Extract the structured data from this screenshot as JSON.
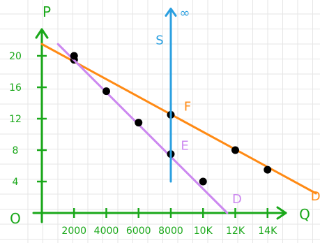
{
  "chart_data": {
    "type": "line",
    "xlabel": "Q",
    "ylabel": "P",
    "origin_label": "O",
    "x_ticks": [
      {
        "value": 2000,
        "label": "2000"
      },
      {
        "value": 4000,
        "label": "4000"
      },
      {
        "value": 6000,
        "label": "6000"
      },
      {
        "value": 8000,
        "label": "8000"
      },
      {
        "value": 10000,
        "label": "10K"
      },
      {
        "value": 12000,
        "label": "12K"
      },
      {
        "value": 14000,
        "label": "14K"
      }
    ],
    "y_ticks": [
      {
        "value": 4,
        "label": "4"
      },
      {
        "value": 8,
        "label": "8"
      },
      {
        "value": 12,
        "label": "12"
      },
      {
        "value": 16,
        "label": "16"
      },
      {
        "value": 20,
        "label": "20"
      }
    ],
    "xlim": [
      0,
      16000
    ],
    "ylim": [
      0,
      24
    ],
    "grid": true,
    "series": [
      {
        "name": "D'",
        "color": "#ff8a14",
        "line": [
          [
            0,
            21.5
          ],
          [
            17000,
            2.5
          ]
        ],
        "points": [
          [
            2000,
            19.5
          ],
          [
            8000,
            12.5
          ],
          [
            12000,
            8
          ],
          [
            14000,
            5.5
          ]
        ]
      },
      {
        "name": "D",
        "color": "#cc88f0",
        "line": [
          [
            1000,
            21.5
          ],
          [
            11500,
            0
          ]
        ],
        "points": [
          [
            2000,
            20
          ],
          [
            4000,
            15.5
          ],
          [
            6000,
            11.5
          ],
          [
            8000,
            7.5
          ],
          [
            10000,
            4
          ]
        ]
      },
      {
        "name": "S",
        "color": "#2a9fe0",
        "line": [
          [
            8000,
            4
          ],
          [
            8000,
            26
          ]
        ],
        "points": []
      }
    ],
    "annotations": [
      {
        "text": "F",
        "x": 8000,
        "y": 12.5,
        "color": "#ff8a14"
      },
      {
        "text": "E",
        "x": 8000,
        "y": 7.5,
        "color": "#cc88f0"
      },
      {
        "text": "S",
        "x": 8000,
        "y": 22,
        "color": "#2a9fe0"
      },
      {
        "text": "∞",
        "x": 8000,
        "y": 26,
        "color": "#2a9fe0"
      }
    ]
  }
}
